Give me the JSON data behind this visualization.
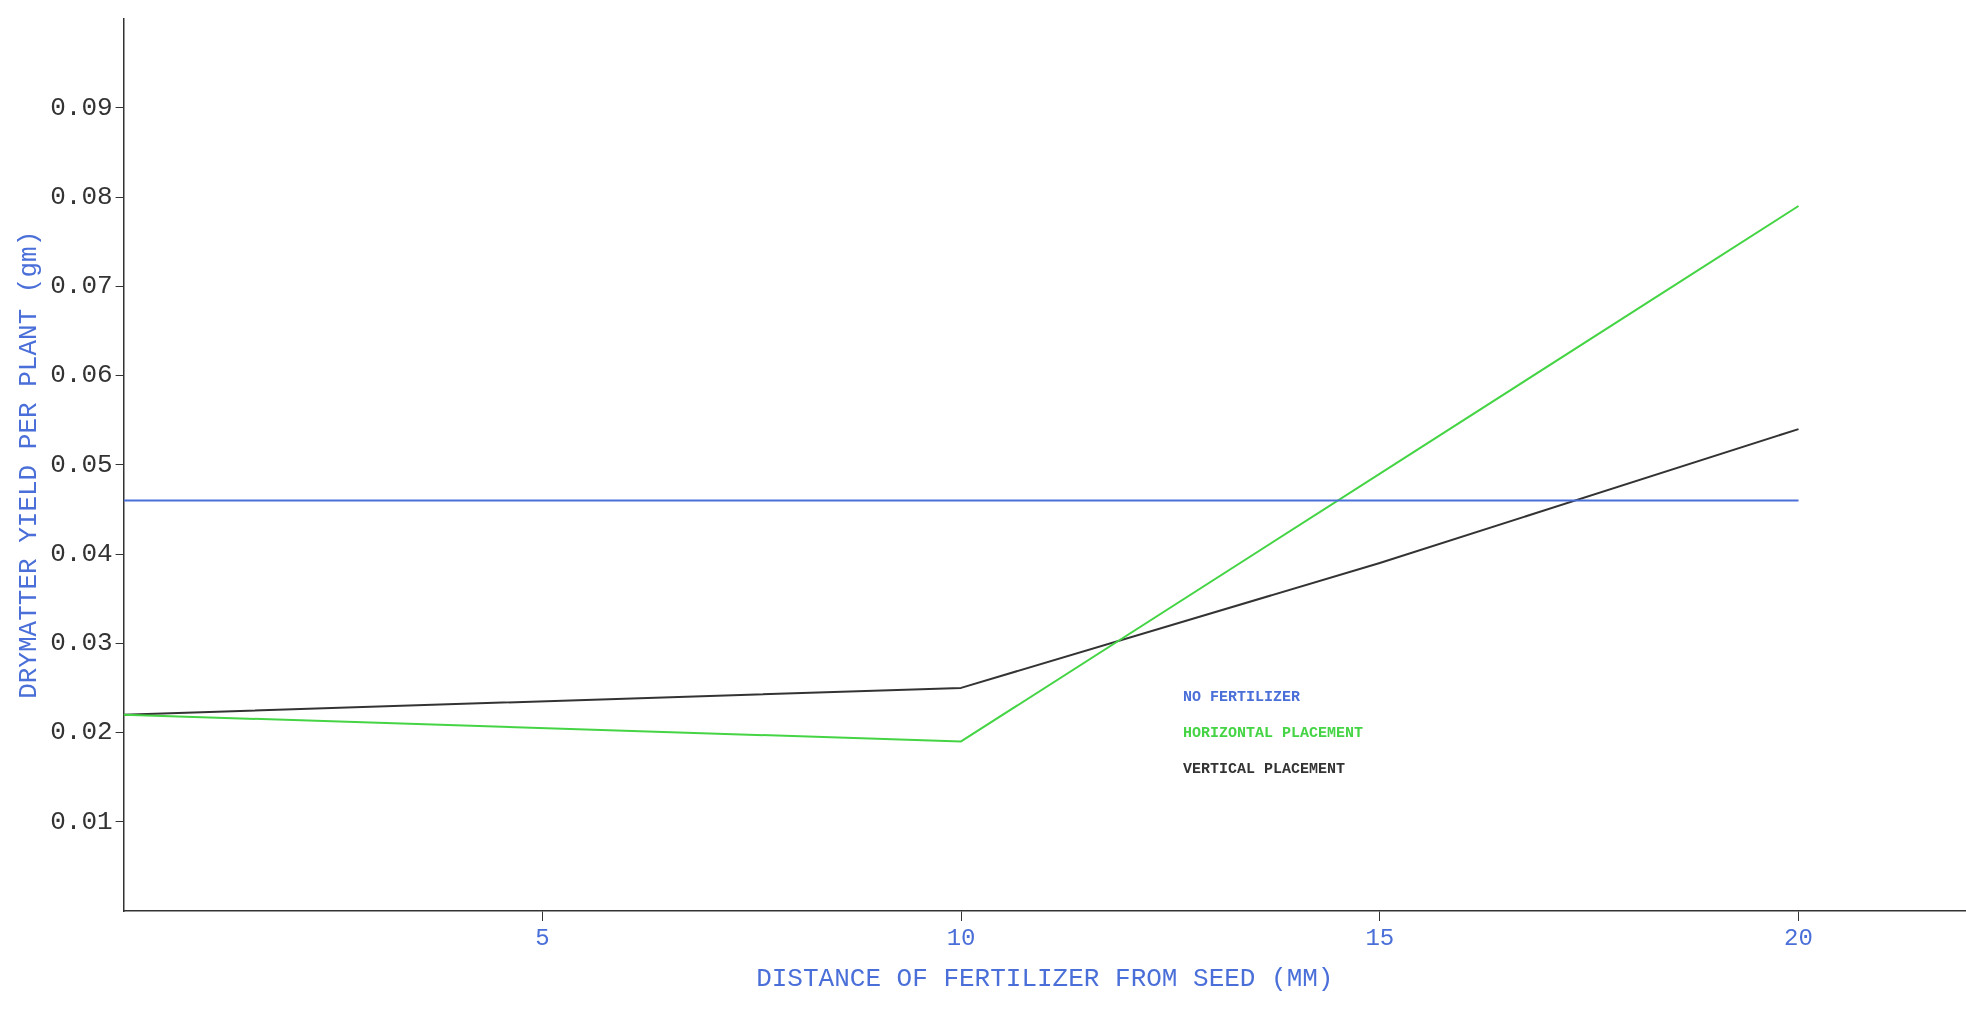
{
  "chart_data": {
    "type": "line",
    "xlabel": "DISTANCE OF FERTILIZER FROM SEED (MM)",
    "ylabel": "DRYMATTER YIELD PER PLANT (gm)",
    "xlim": [
      0,
      22
    ],
    "xticks": [
      5,
      10,
      15,
      20
    ],
    "ylim": [
      0,
      0.1
    ],
    "yticks": [
      0.01,
      0.02,
      0.03,
      0.04,
      0.05,
      0.06,
      0.07,
      0.08,
      0.09
    ],
    "grid": false,
    "legend": "right",
    "marker": "none",
    "line_style": "solid",
    "series": [
      {
        "name": "NO FERTILIZER",
        "color": "#4a6fd8",
        "x": [
          0,
          10,
          20
        ],
        "values": [
          0.046,
          0.046,
          0.046
        ]
      },
      {
        "name": "HORIZONTAL PLACEMENT",
        "color": "#44d444",
        "x": [
          0,
          10,
          20
        ],
        "values": [
          0.022,
          0.019,
          0.079
        ]
      },
      {
        "name": "VERTICAL PLACEMENT",
        "color": "#333333",
        "x": [
          0,
          10,
          15,
          20
        ],
        "values": [
          0.022,
          0.025,
          0.039,
          0.054
        ]
      }
    ]
  }
}
